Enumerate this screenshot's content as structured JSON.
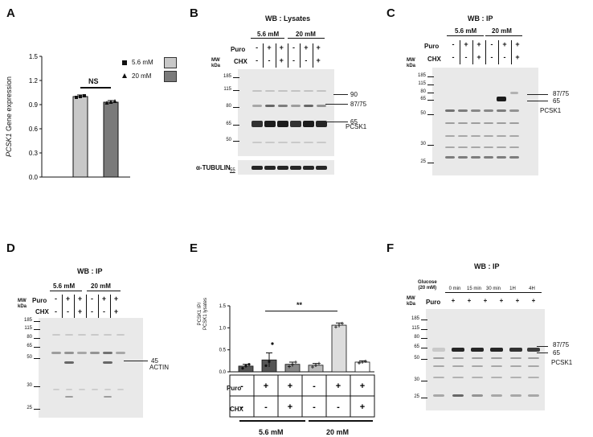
{
  "panel_letters": {
    "A": "A",
    "B": "B",
    "C": "C",
    "D": "D",
    "E": "E",
    "F": "F"
  },
  "panelA": {
    "ylabel_italic": "PCSK1",
    "ylabel_rest": " Gene expression",
    "sig": "NS",
    "legend": [
      "5.6 mM",
      "20 mM"
    ]
  },
  "panelB": {
    "title": "WB : Lysates",
    "groups": [
      "5.6 mM",
      "20 mM"
    ],
    "row1_label": "Puro",
    "row2_label": "CHX",
    "row1": [
      "-",
      "+",
      "+",
      "-",
      "+",
      "+"
    ],
    "row2": [
      "-",
      "-",
      "+",
      "-",
      "-",
      "+"
    ],
    "mw_header": [
      "MW",
      "kDa"
    ],
    "mw": [
      "185",
      "115",
      "80",
      "65",
      "50"
    ],
    "arrows": [
      "90",
      "87/75",
      "65"
    ],
    "band_label": "PCSK1",
    "tubulin_label": "α-TUBULIN",
    "tubulin_mw": "55"
  },
  "panelC": {
    "title": "WB : IP",
    "groups": [
      "5.6 mM",
      "20 mM"
    ],
    "row1_label": "Puro",
    "row2_label": "CHX",
    "row1": [
      "-",
      "+",
      "+",
      "-",
      "+",
      "+"
    ],
    "row2": [
      "-",
      "-",
      "+",
      "-",
      "-",
      "+"
    ],
    "mw_header": [
      "MW",
      "kDa"
    ],
    "mw": [
      "185",
      "115",
      "80",
      "65",
      "50",
      "30",
      "25"
    ],
    "arrows": [
      "87/75",
      "65"
    ],
    "band_label": "PCSK1"
  },
  "panelD": {
    "title": "WB : IP",
    "groups": [
      "5.6 mM",
      "20 mM"
    ],
    "row1_label": "Puro",
    "row2_label": "CHX",
    "row1": [
      "-",
      "+",
      "+",
      "-",
      "+",
      "+"
    ],
    "row2": [
      "-",
      "-",
      "+",
      "-",
      "-",
      "+"
    ],
    "mw_header": [
      "MW",
      "kDa"
    ],
    "mw": [
      "185",
      "115",
      "80",
      "65",
      "50",
      "30",
      "25"
    ],
    "arrow": "45",
    "band_label": "ACTIN"
  },
  "panelE": {
    "ylabel": [
      "PCSK1 IP/",
      "PCSK1 lysates"
    ],
    "sig": "**",
    "row1_label": "Puro",
    "row2_label": "CHX",
    "row1": [
      "-",
      "+",
      "+",
      "-",
      "+",
      "+"
    ],
    "row2": [
      "-",
      "-",
      "+",
      "-",
      "-",
      "+"
    ],
    "groups": [
      "5.6 mM",
      "20 mM"
    ]
  },
  "panelF": {
    "title": "WB : IP",
    "glucose": [
      "Glucose",
      "(20 mM)"
    ],
    "times": [
      "0 min",
      "15 min",
      "30 min",
      "1H",
      "4H"
    ],
    "row_label": "Puro",
    "row": [
      "+",
      "+",
      "+",
      "+",
      "+",
      "+"
    ],
    "mw_header": [
      "MW",
      "kDa"
    ],
    "mw": [
      "185",
      "115",
      "80",
      "65",
      "50",
      "30",
      "25"
    ],
    "arrows": [
      "87/75",
      "65"
    ],
    "band_label": "PCSK1"
  },
  "chart_data": [
    {
      "type": "bar",
      "panel": "A",
      "categories": [
        "5.6 mM",
        "20 mM"
      ],
      "values": [
        1.0,
        0.93
      ],
      "errors": [
        0.02,
        0.02
      ],
      "points": [
        [
          0.99,
          1.0,
          1.01
        ],
        [
          0.92,
          0.93,
          0.94
        ]
      ],
      "ylim": [
        0.0,
        1.5
      ],
      "yticks": [
        "0.0",
        "0.3",
        "0.6",
        "0.9",
        "1.2",
        "1.5"
      ],
      "colors": [
        "#c8c8c8",
        "#7a7a7a"
      ]
    },
    {
      "type": "bar",
      "panel": "E",
      "values": [
        0.13,
        0.27,
        0.17,
        0.15,
        1.06,
        0.22
      ],
      "errors": [
        0.04,
        0.16,
        0.05,
        0.04,
        0.05,
        0.03
      ],
      "points": [
        [
          0.08,
          0.14,
          0.17
        ],
        [
          0.14,
          0.23,
          0.64
        ],
        [
          0.12,
          0.17,
          0.22
        ],
        [
          0.11,
          0.15,
          0.19
        ],
        [
          1.02,
          1.06,
          1.1
        ],
        [
          0.2,
          0.22,
          0.24
        ]
      ],
      "ylim": [
        0.0,
        1.5
      ],
      "yticks": [
        "0.0",
        "0.5",
        "1.0",
        "1.5"
      ],
      "colors": [
        "#555555",
        "#555555",
        "#888888",
        "#bbbbbb",
        "#dddddd",
        "#ffffff"
      ]
    }
  ]
}
